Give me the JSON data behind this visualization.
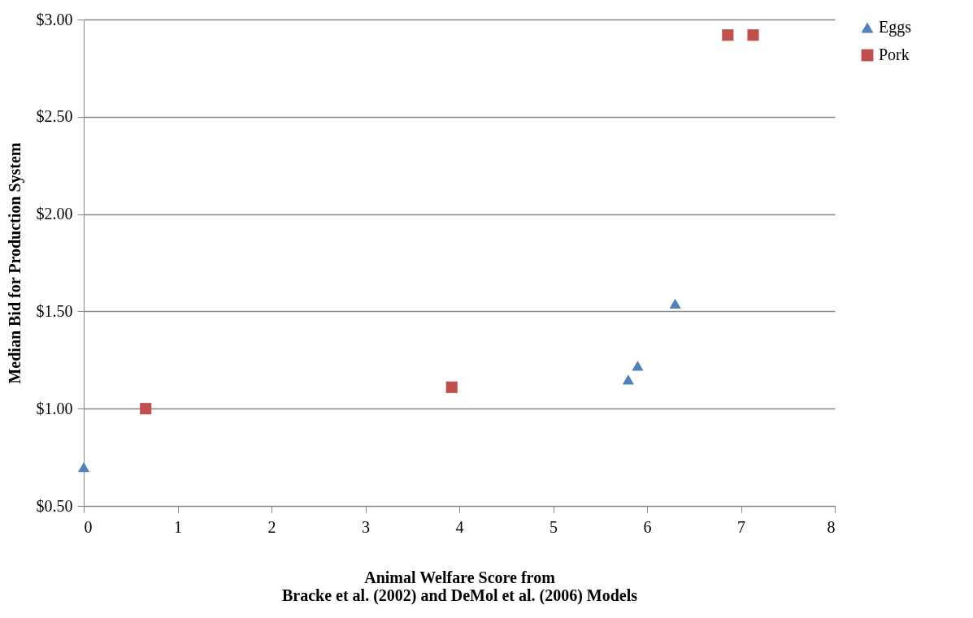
{
  "chart_data": {
    "type": "scatter",
    "xlabel": "Animal Welfare Score from\nBracke et al. (2002) and DeMol et al. (2006) Models",
    "ylabel": "Median Bid for Production System",
    "series": [
      {
        "name": "Eggs",
        "color": "#4f81bd",
        "marker": "triangle",
        "x": [
          0,
          5.8,
          5.9,
          6.3
        ],
        "values": [
          0.7,
          1.15,
          1.22,
          1.54
        ]
      },
      {
        "name": "Pork",
        "color": "#c0504d",
        "marker": "square",
        "x": [
          0.66,
          3.92,
          6.86,
          7.13
        ],
        "values": [
          1.0,
          1.11,
          2.92,
          2.92
        ]
      }
    ],
    "xlim": [
      0,
      8
    ],
    "xticks": [
      0,
      1,
      2,
      3,
      4,
      5,
      6,
      7,
      8
    ],
    "ylim": [
      0.5,
      3
    ],
    "yticks": [
      {
        "value": 0.5,
        "label": "$0.50"
      },
      {
        "value": 1,
        "label": "$1.00"
      },
      {
        "value": 1.5,
        "label": "$1.50"
      },
      {
        "value": 2,
        "label": "$2.00"
      },
      {
        "value": 2.5,
        "label": "$2.50"
      },
      {
        "value": 3,
        "label": "$3.00"
      }
    ],
    "grid": "y",
    "legend": "right"
  }
}
